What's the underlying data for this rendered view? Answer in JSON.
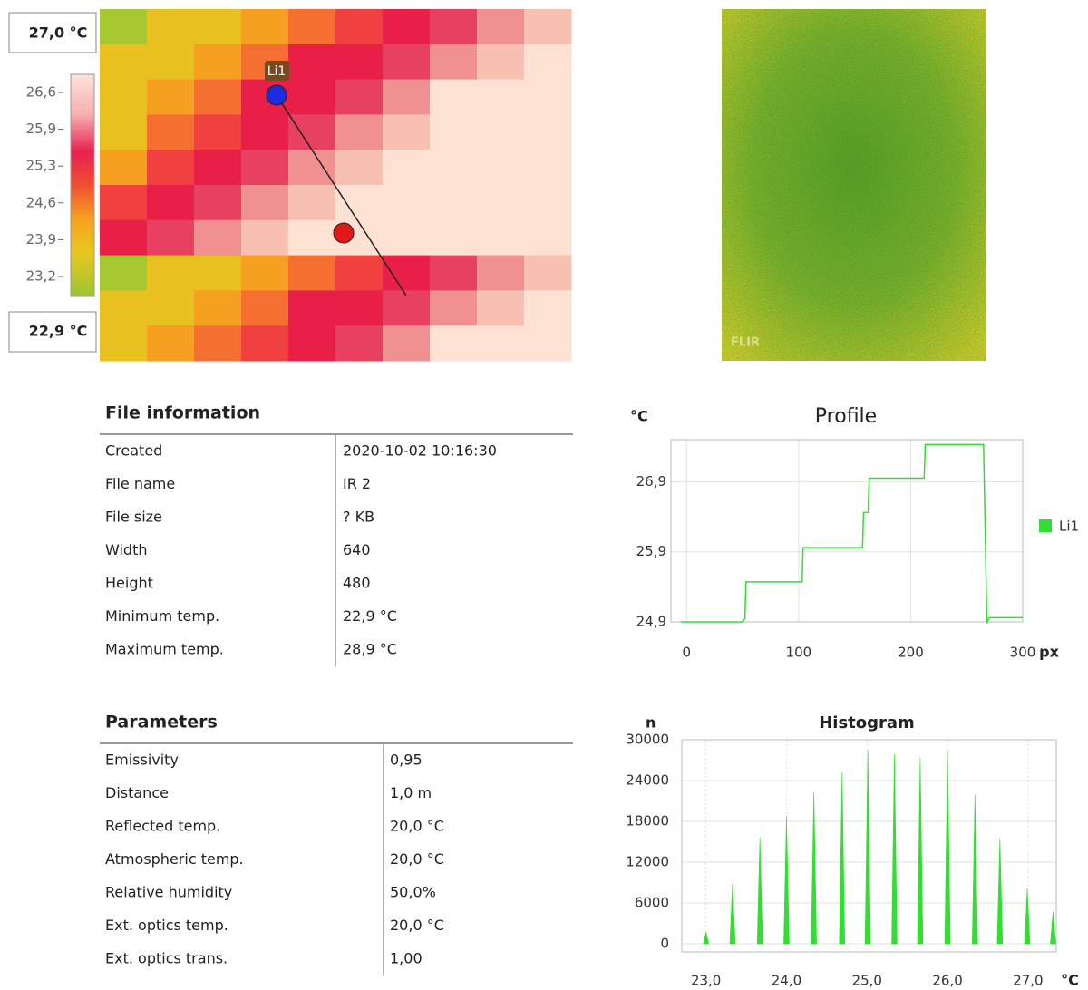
{
  "thermal_image": {
    "max_label": "27,0 °C",
    "min_label": "22,9 °C",
    "scale_ticks": [
      "26,6",
      "25,9",
      "25,3",
      "24,6",
      "23,9",
      "23,2"
    ],
    "marker_label": "Li1"
  },
  "photo": {
    "watermark": "FLIR"
  },
  "file_information": {
    "title": "File information",
    "rows": [
      [
        "Created",
        "2020-10-02 10:16:30"
      ],
      [
        "File name",
        "IR 2"
      ],
      [
        "File size",
        "? KB"
      ],
      [
        "Width",
        "640"
      ],
      [
        "Height",
        "480"
      ],
      [
        "Minimum temp.",
        "22,9 °C"
      ],
      [
        "Maximum temp.",
        "28,9 °C"
      ]
    ]
  },
  "parameters": {
    "title": "Parameters",
    "rows": [
      [
        "Emissivity",
        "0,95"
      ],
      [
        "Distance",
        "1,0 m"
      ],
      [
        "Reflected temp.",
        "20,0 °C"
      ],
      [
        "Atmospheric temp.",
        "20,0 °C"
      ],
      [
        "Relative humidity",
        "50,0%"
      ],
      [
        "Ext. optics temp.",
        "20,0 °C"
      ],
      [
        "Ext. optics trans.",
        "1,00"
      ]
    ]
  },
  "chart_data": [
    {
      "type": "line",
      "title": "Profile",
      "y_label": "°C",
      "x_label": "px",
      "x": [
        -5,
        50,
        52,
        53,
        103,
        104,
        157,
        158,
        162,
        163,
        212,
        213,
        265,
        268,
        270,
        300
      ],
      "series": [
        {
          "name": "Li1",
          "color": "#33dd33",
          "values": [
            24.9,
            24.9,
            24.95,
            25.47,
            25.47,
            25.96,
            25.96,
            26.46,
            26.46,
            26.95,
            26.95,
            27.43,
            27.43,
            24.88,
            24.96,
            24.96
          ]
        }
      ],
      "xlim": [
        -14,
        300
      ],
      "ylim": [
        24.9,
        27.5
      ],
      "xticks": [
        0,
        100,
        200,
        300
      ],
      "yticks": [
        {
          "value": 24.9,
          "label": "24,9"
        },
        {
          "value": 25.9,
          "label": "25,9"
        },
        {
          "value": 26.9,
          "label": "26,9"
        }
      ],
      "grid": true,
      "legend": "right"
    },
    {
      "type": "bar",
      "title": "Histogram",
      "y_label": "n",
      "x_label": "°C",
      "x": [
        23.0,
        23.33,
        23.67,
        24.0,
        24.34,
        24.69,
        25.01,
        25.34,
        25.66,
        26.0,
        26.34,
        26.65,
        26.99,
        27.31
      ],
      "values": [
        1700,
        8800,
        15600,
        18800,
        22300,
        25200,
        28500,
        27900,
        27300,
        28400,
        21900,
        15500,
        8100,
        4700
      ],
      "color": "#33dd33",
      "xlim": [
        22.7,
        27.35
      ],
      "ylim": [
        0,
        30000
      ],
      "xticks": [
        {
          "value": 23,
          "label": "23,0"
        },
        {
          "value": 24,
          "label": "24,0"
        },
        {
          "value": 25,
          "label": "25,0"
        },
        {
          "value": 26,
          "label": "26,0"
        },
        {
          "value": 27,
          "label": "27,0"
        }
      ],
      "yticks": [
        0,
        6000,
        12000,
        18000,
        24000,
        30000
      ],
      "grid": true
    }
  ]
}
